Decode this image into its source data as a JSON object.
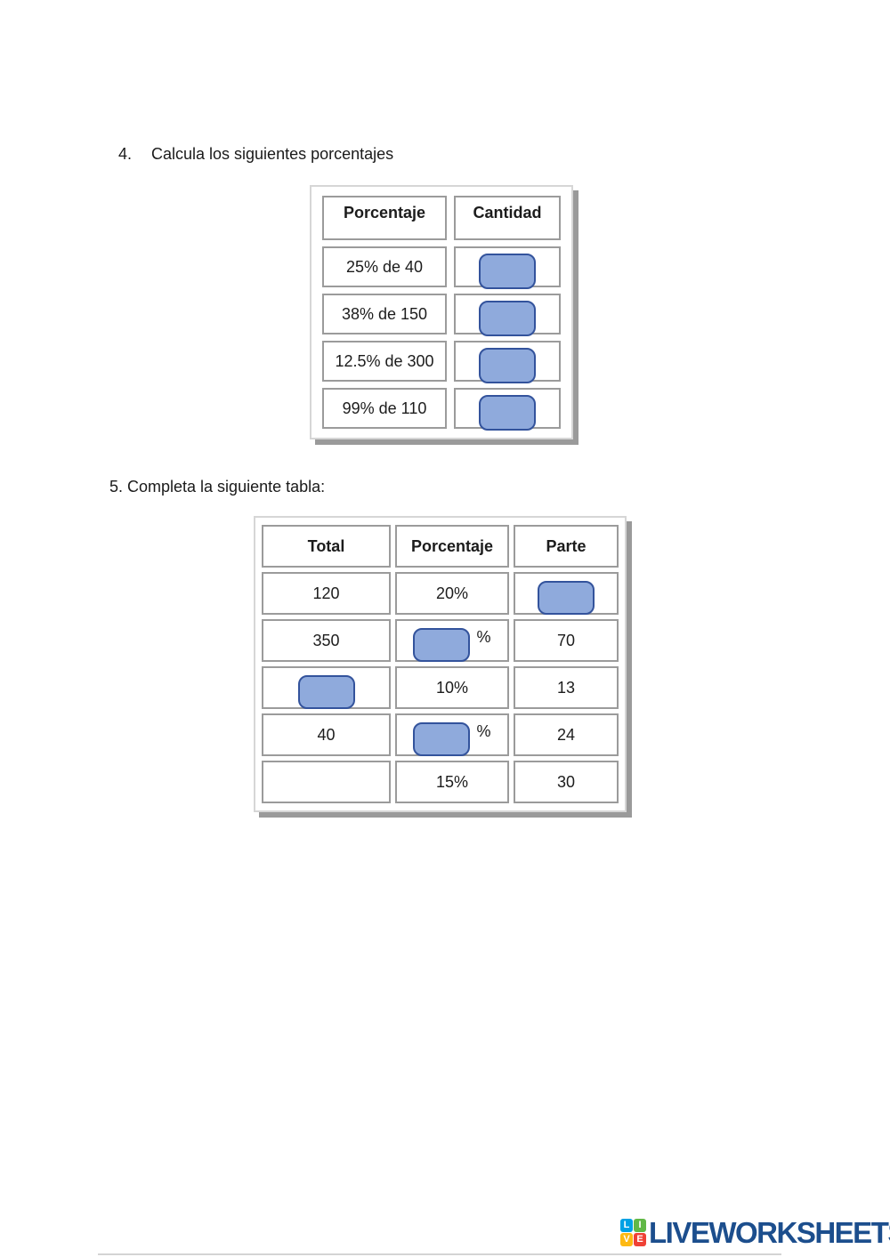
{
  "exercise4": {
    "number": "4.",
    "title": "Calcula los siguientes porcentajes",
    "table": {
      "col1_header": "Porcentaje",
      "col2_header": "Cantidad",
      "rows": [
        {
          "porcentaje": "25% de 40"
        },
        {
          "porcentaje": "38% de 150"
        },
        {
          "porcentaje": "12.5% de 300"
        },
        {
          "porcentaje": "99% de 110"
        }
      ]
    }
  },
  "exercise5": {
    "title": "5. Completa la siguiente tabla:",
    "table": {
      "col1_header": "Total",
      "col2_header": "Porcentaje",
      "col3_header": "Parte",
      "percent_suffix": "%",
      "rows": [
        {
          "total": "120",
          "porcentaje": "20%",
          "parte": ""
        },
        {
          "total": "350",
          "porcentaje": "",
          "parte": "70"
        },
        {
          "total": "",
          "porcentaje": "10%",
          "parte": "13"
        },
        {
          "total": "40",
          "porcentaje": "",
          "parte": "24"
        },
        {
          "total": "",
          "porcentaje": "15%",
          "parte": "30"
        }
      ]
    }
  },
  "footer": {
    "brand": "LIVEWORKSHEETS",
    "logo_tiles": [
      {
        "letter": "L",
        "color": "#00a1e4"
      },
      {
        "letter": "I",
        "color": "#61b846"
      },
      {
        "letter": "V",
        "color": "#fdb913"
      },
      {
        "letter": "E",
        "color": "#ef4136"
      }
    ]
  },
  "colors": {
    "answer_box_fill": "#8faadc",
    "answer_box_border": "#33539c",
    "table_cell_border": "#9b9b9b",
    "panel_shadow": "#9a9a9a",
    "brand_blue": "#1c4e8d",
    "text": "#1c1c1c"
  }
}
